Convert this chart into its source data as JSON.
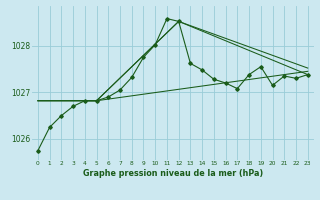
{
  "title": "Graphe pression niveau de la mer (hPa)",
  "bg_color": "#cce8f0",
  "plot_bg_color": "#cce8f0",
  "grid_color": "#99ccd8",
  "line_color": "#1a5c1a",
  "label_bg": "#1a5c1a",
  "xlim": [
    -0.5,
    23.5
  ],
  "ylim": [
    1025.55,
    1028.85
  ],
  "yticks": [
    1026,
    1027,
    1028
  ],
  "xticks": [
    0,
    1,
    2,
    3,
    4,
    5,
    6,
    7,
    8,
    9,
    10,
    11,
    12,
    13,
    14,
    15,
    16,
    17,
    18,
    19,
    20,
    21,
    22,
    23
  ],
  "main_x": [
    0,
    1,
    2,
    3,
    4,
    5,
    6,
    7,
    8,
    9,
    10,
    11,
    12,
    13,
    14,
    15,
    16,
    17,
    18,
    19,
    20,
    21,
    22,
    23
  ],
  "main_y": [
    1025.75,
    1026.25,
    1026.5,
    1026.7,
    1026.82,
    1026.82,
    1026.9,
    1027.05,
    1027.32,
    1027.75,
    1028.02,
    1028.58,
    1028.52,
    1027.62,
    1027.48,
    1027.28,
    1027.2,
    1027.08,
    1027.38,
    1027.55,
    1027.15,
    1027.35,
    1027.3,
    1027.38
  ],
  "trend1_x": [
    0,
    5,
    12,
    23
  ],
  "trend1_y": [
    1026.82,
    1026.82,
    1028.52,
    1027.38
  ],
  "trend2_x": [
    0,
    5,
    12,
    23
  ],
  "trend2_y": [
    1026.82,
    1026.82,
    1028.52,
    1027.52
  ],
  "trend3_x": [
    0,
    5,
    23
  ],
  "trend3_y": [
    1026.82,
    1026.82,
    1027.45
  ]
}
